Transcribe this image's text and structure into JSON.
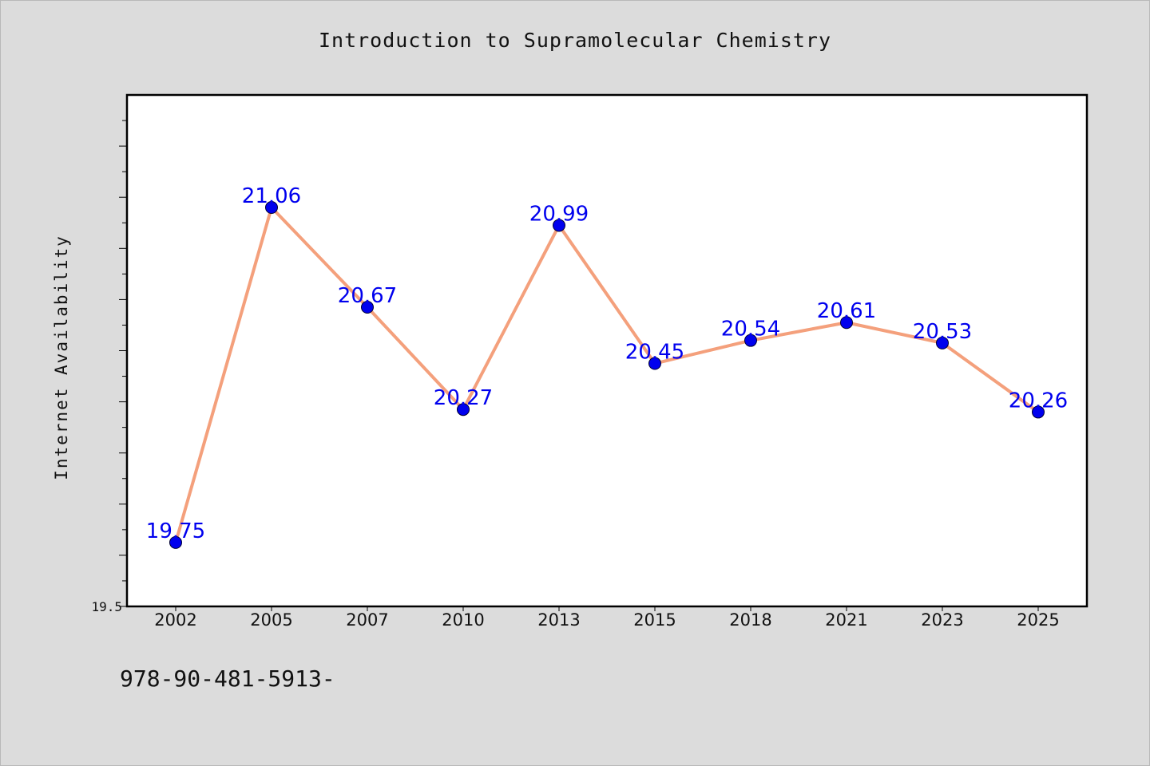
{
  "chart_data": {
    "type": "line",
    "title": "Introduction to Supramolecular Chemistry",
    "xlabel": "",
    "ylabel": "Internet Availability",
    "categories": [
      "2002",
      "2005",
      "2007",
      "2010",
      "2013",
      "2015",
      "2018",
      "2021",
      "2023",
      "2025"
    ],
    "series": [
      {
        "values": [
          19.75,
          21.06,
          20.67,
          20.27,
          20.99,
          20.45,
          20.54,
          20.61,
          20.53,
          20.26
        ],
        "labels": [
          "19.75",
          "21.06",
          "20.67",
          "20.27",
          "20.99",
          "20.45",
          "20.54",
          "20.61",
          "20.53",
          "20.26"
        ],
        "line_color": "#f4a07c",
        "marker_color": "#0000ee"
      }
    ],
    "ylim": [
      19.5,
      21.5
    ],
    "y_tick_labels": [
      "19.5"
    ],
    "grid": false,
    "legend": "none"
  },
  "footer": {
    "code": "978-90-481-5913-"
  }
}
